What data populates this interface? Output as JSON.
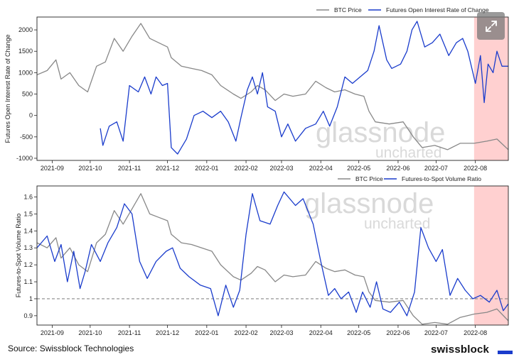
{
  "colors": {
    "btc_price": "#888888",
    "blue_series": "#1a3ccc",
    "highlight": "#ffc8c8",
    "reference_line": "#888888"
  },
  "watermark": {
    "line1": "glassnode",
    "line2": "uncharted"
  },
  "footer": {
    "source": "Source: Swissblock Technologies",
    "brand": "swissblock"
  },
  "expand_button": {
    "icon": "expand-arrows-icon"
  },
  "chart_data": [
    {
      "type": "line",
      "ylabel": "Futures Open Interest Rate of Change",
      "xlabel": "",
      "ylim": [
        -1050,
        2300
      ],
      "yticks": [
        -1000,
        -500,
        0,
        500,
        1000,
        1500,
        2000
      ],
      "x_range": [
        "2021-08-20",
        "2022-08-27"
      ],
      "xticks": [
        "2021-09",
        "2021-10",
        "2021-11",
        "2021-12",
        "2022-01",
        "2022-02",
        "2022-03",
        "2022-04",
        "2022-05",
        "2022-06",
        "2022-07",
        "2022-08"
      ],
      "highlight_range": [
        "2022-07-31",
        "2022-08-27"
      ],
      "legend": {
        "position": "top-right",
        "items": [
          "BTC Price",
          "Futures Open Interest Rate of Change"
        ]
      },
      "series": [
        {
          "name": "BTC Price",
          "points": [
            [
              "2021-08-20",
              950
            ],
            [
              "2021-08-28",
              1050
            ],
            [
              "2021-09-04",
              1300
            ],
            [
              "2021-09-08",
              850
            ],
            [
              "2021-09-15",
              1000
            ],
            [
              "2021-09-22",
              700
            ],
            [
              "2021-09-29",
              550
            ],
            [
              "2021-10-06",
              1150
            ],
            [
              "2021-10-13",
              1250
            ],
            [
              "2021-10-20",
              1800
            ],
            [
              "2021-10-27",
              1500
            ],
            [
              "2021-11-03",
              1850
            ],
            [
              "2021-11-10",
              2150
            ],
            [
              "2021-11-17",
              1800
            ],
            [
              "2021-11-24",
              1700
            ],
            [
              "2021-12-01",
              1600
            ],
            [
              "2021-12-04",
              1350
            ],
            [
              "2021-12-12",
              1150
            ],
            [
              "2021-12-20",
              1100
            ],
            [
              "2021-12-28",
              1050
            ],
            [
              "2022-01-05",
              950
            ],
            [
              "2022-01-12",
              700
            ],
            [
              "2022-01-22",
              500
            ],
            [
              "2022-01-28",
              400
            ],
            [
              "2022-02-05",
              550
            ],
            [
              "2022-02-10",
              700
            ],
            [
              "2022-02-16",
              600
            ],
            [
              "2022-02-24",
              350
            ],
            [
              "2022-03-03",
              500
            ],
            [
              "2022-03-10",
              450
            ],
            [
              "2022-03-20",
              500
            ],
            [
              "2022-03-28",
              800
            ],
            [
              "2022-04-05",
              650
            ],
            [
              "2022-04-12",
              550
            ],
            [
              "2022-04-20",
              600
            ],
            [
              "2022-04-28",
              500
            ],
            [
              "2022-05-05",
              450
            ],
            [
              "2022-05-09",
              100
            ],
            [
              "2022-05-14",
              -150
            ],
            [
              "2022-05-25",
              -200
            ],
            [
              "2022-06-05",
              -150
            ],
            [
              "2022-06-13",
              -500
            ],
            [
              "2022-06-20",
              -750
            ],
            [
              "2022-06-30",
              -700
            ],
            [
              "2022-07-10",
              -800
            ],
            [
              "2022-07-20",
              -650
            ],
            [
              "2022-07-31",
              -650
            ],
            [
              "2022-08-10",
              -600
            ],
            [
              "2022-08-18",
              -550
            ],
            [
              "2022-08-27",
              -800
            ]
          ]
        },
        {
          "name": "Futures Open Interest Rate of Change",
          "points": [
            [
              "2021-10-09",
              -300
            ],
            [
              "2021-10-11",
              -700
            ],
            [
              "2021-10-16",
              -250
            ],
            [
              "2021-10-22",
              -150
            ],
            [
              "2021-10-27",
              -600
            ],
            [
              "2021-11-01",
              700
            ],
            [
              "2021-11-08",
              550
            ],
            [
              "2021-11-13",
              900
            ],
            [
              "2021-11-18",
              500
            ],
            [
              "2021-11-22",
              900
            ],
            [
              "2021-11-27",
              700
            ],
            [
              "2021-12-01",
              750
            ],
            [
              "2021-12-04",
              -750
            ],
            [
              "2021-12-09",
              -900
            ],
            [
              "2021-12-16",
              -550
            ],
            [
              "2021-12-22",
              0
            ],
            [
              "2021-12-29",
              100
            ],
            [
              "2022-01-05",
              -50
            ],
            [
              "2022-01-12",
              100
            ],
            [
              "2022-01-18",
              -150
            ],
            [
              "2022-01-24",
              -600
            ],
            [
              "2022-01-28",
              -50
            ],
            [
              "2022-02-02",
              600
            ],
            [
              "2022-02-06",
              900
            ],
            [
              "2022-02-10",
              500
            ],
            [
              "2022-02-14",
              1000
            ],
            [
              "2022-02-18",
              200
            ],
            [
              "2022-02-24",
              100
            ],
            [
              "2022-03-01",
              -500
            ],
            [
              "2022-03-06",
              -200
            ],
            [
              "2022-03-12",
              -600
            ],
            [
              "2022-03-20",
              -300
            ],
            [
              "2022-03-28",
              -200
            ],
            [
              "2022-04-03",
              100
            ],
            [
              "2022-04-08",
              -250
            ],
            [
              "2022-04-14",
              200
            ],
            [
              "2022-04-20",
              900
            ],
            [
              "2022-04-26",
              750
            ],
            [
              "2022-05-02",
              900
            ],
            [
              "2022-05-08",
              1050
            ],
            [
              "2022-05-13",
              1500
            ],
            [
              "2022-05-17",
              2100
            ],
            [
              "2022-05-23",
              1300
            ],
            [
              "2022-05-27",
              1100
            ],
            [
              "2022-06-03",
              1200
            ],
            [
              "2022-06-08",
              1500
            ],
            [
              "2022-06-12",
              2000
            ],
            [
              "2022-06-16",
              2200
            ],
            [
              "2022-06-22",
              1600
            ],
            [
              "2022-06-28",
              1700
            ],
            [
              "2022-07-04",
              1900
            ],
            [
              "2022-07-11",
              1400
            ],
            [
              "2022-07-17",
              1700
            ],
            [
              "2022-07-22",
              1800
            ],
            [
              "2022-07-26",
              1500
            ],
            [
              "2022-08-01",
              750
            ],
            [
              "2022-08-05",
              1400
            ],
            [
              "2022-08-08",
              300
            ],
            [
              "2022-08-11",
              1200
            ],
            [
              "2022-08-15",
              1000
            ],
            [
              "2022-08-18",
              1500
            ],
            [
              "2022-08-22",
              1150
            ],
            [
              "2022-08-27",
              1150
            ]
          ]
        }
      ]
    },
    {
      "type": "line",
      "ylabel": "Futures-to-Spot Volume Ratio",
      "xlabel": "",
      "ylim": [
        0.845,
        1.665
      ],
      "yticks": [
        0.9,
        1.0,
        1.1,
        1.2,
        1.3,
        1.4,
        1.5,
        1.6
      ],
      "x_range": [
        "2021-08-20",
        "2022-08-27"
      ],
      "xticks": [
        "2021-09",
        "2021-10",
        "2021-11",
        "2021-12",
        "2022-01",
        "2022-02",
        "2022-03",
        "2022-04",
        "2022-05",
        "2022-06",
        "2022-07",
        "2022-08"
      ],
      "highlight_range": [
        "2022-07-31",
        "2022-08-27"
      ],
      "reference_line": 1.0,
      "legend": {
        "position": "top-right",
        "items": [
          "BTC Price",
          "Futures-to-Spot Volume Ratio"
        ]
      },
      "series": [
        {
          "name": "BTC Price",
          "points": [
            [
              "2021-08-20",
              1.33
            ],
            [
              "2021-08-28",
              1.3
            ],
            [
              "2021-09-04",
              1.36
            ],
            [
              "2021-09-08",
              1.24
            ],
            [
              "2021-09-15",
              1.3
            ],
            [
              "2021-09-22",
              1.2
            ],
            [
              "2021-09-29",
              1.16
            ],
            [
              "2021-10-06",
              1.33
            ],
            [
              "2021-10-13",
              1.38
            ],
            [
              "2021-10-20",
              1.52
            ],
            [
              "2021-10-27",
              1.44
            ],
            [
              "2021-11-03",
              1.53
            ],
            [
              "2021-11-10",
              1.62
            ],
            [
              "2021-11-17",
              1.5
            ],
            [
              "2021-11-24",
              1.48
            ],
            [
              "2021-12-01",
              1.46
            ],
            [
              "2021-12-04",
              1.38
            ],
            [
              "2021-12-12",
              1.33
            ],
            [
              "2021-12-20",
              1.32
            ],
            [
              "2021-12-28",
              1.3
            ],
            [
              "2022-01-05",
              1.28
            ],
            [
              "2022-01-12",
              1.2
            ],
            [
              "2022-01-22",
              1.13
            ],
            [
              "2022-01-28",
              1.11
            ],
            [
              "2022-02-05",
              1.15
            ],
            [
              "2022-02-10",
              1.19
            ],
            [
              "2022-02-16",
              1.17
            ],
            [
              "2022-02-24",
              1.1
            ],
            [
              "2022-03-03",
              1.14
            ],
            [
              "2022-03-10",
              1.13
            ],
            [
              "2022-03-20",
              1.14
            ],
            [
              "2022-03-28",
              1.22
            ],
            [
              "2022-04-05",
              1.18
            ],
            [
              "2022-04-12",
              1.16
            ],
            [
              "2022-04-20",
              1.17
            ],
            [
              "2022-04-28",
              1.14
            ],
            [
              "2022-05-05",
              1.13
            ],
            [
              "2022-05-09",
              1.04
            ],
            [
              "2022-05-14",
              0.99
            ],
            [
              "2022-05-25",
              0.98
            ],
            [
              "2022-06-05",
              0.99
            ],
            [
              "2022-06-13",
              0.9
            ],
            [
              "2022-06-20",
              0.85
            ],
            [
              "2022-06-30",
              0.86
            ],
            [
              "2022-07-10",
              0.85
            ],
            [
              "2022-07-20",
              0.89
            ],
            [
              "2022-07-31",
              0.91
            ],
            [
              "2022-08-10",
              0.92
            ],
            [
              "2022-08-18",
              0.94
            ],
            [
              "2022-08-27",
              0.87
            ]
          ]
        },
        {
          "name": "Futures-to-Spot Volume Ratio",
          "points": [
            [
              "2021-08-20",
              1.3
            ],
            [
              "2021-08-28",
              1.37
            ],
            [
              "2021-09-03",
              1.22
            ],
            [
              "2021-09-08",
              1.32
            ],
            [
              "2021-09-13",
              1.1
            ],
            [
              "2021-09-18",
              1.28
            ],
            [
              "2021-09-23",
              1.06
            ],
            [
              "2021-09-27",
              1.16
            ],
            [
              "2021-10-02",
              1.32
            ],
            [
              "2021-10-09",
              1.22
            ],
            [
              "2021-10-15",
              1.33
            ],
            [
              "2021-10-22",
              1.42
            ],
            [
              "2021-10-28",
              1.56
            ],
            [
              "2021-11-03",
              1.5
            ],
            [
              "2021-11-09",
              1.22
            ],
            [
              "2021-11-15",
              1.12
            ],
            [
              "2021-11-22",
              1.22
            ],
            [
              "2021-11-30",
              1.28
            ],
            [
              "2021-12-05",
              1.3
            ],
            [
              "2021-12-11",
              1.18
            ],
            [
              "2021-12-18",
              1.13
            ],
            [
              "2021-12-27",
              1.08
            ],
            [
              "2022-01-04",
              1.06
            ],
            [
              "2022-01-10",
              0.9
            ],
            [
              "2022-01-16",
              1.08
            ],
            [
              "2022-01-22",
              0.95
            ],
            [
              "2022-01-27",
              1.05
            ],
            [
              "2022-02-01",
              1.38
            ],
            [
              "2022-02-06",
              1.62
            ],
            [
              "2022-02-12",
              1.46
            ],
            [
              "2022-02-20",
              1.44
            ],
            [
              "2022-02-26",
              1.55
            ],
            [
              "2022-03-03",
              1.63
            ],
            [
              "2022-03-12",
              1.55
            ],
            [
              "2022-03-18",
              1.59
            ],
            [
              "2022-03-26",
              1.44
            ],
            [
              "2022-04-01",
              1.22
            ],
            [
              "2022-04-07",
              1.02
            ],
            [
              "2022-04-12",
              1.06
            ],
            [
              "2022-04-17",
              1.0
            ],
            [
              "2022-04-23",
              1.04
            ],
            [
              "2022-04-29",
              0.92
            ],
            [
              "2022-05-04",
              1.04
            ],
            [
              "2022-05-10",
              0.95
            ],
            [
              "2022-05-15",
              1.1
            ],
            [
              "2022-05-20",
              0.94
            ],
            [
              "2022-05-26",
              0.92
            ],
            [
              "2022-06-02",
              0.98
            ],
            [
              "2022-06-08",
              0.9
            ],
            [
              "2022-06-14",
              1.04
            ],
            [
              "2022-06-19",
              1.42
            ],
            [
              "2022-06-25",
              1.3
            ],
            [
              "2022-07-01",
              1.22
            ],
            [
              "2022-07-06",
              1.29
            ],
            [
              "2022-07-12",
              1.02
            ],
            [
              "2022-07-18",
              1.12
            ],
            [
              "2022-07-24",
              1.05
            ],
            [
              "2022-07-30",
              1.0
            ],
            [
              "2022-08-05",
              1.02
            ],
            [
              "2022-08-12",
              0.98
            ],
            [
              "2022-08-18",
              1.05
            ],
            [
              "2022-08-23",
              0.93
            ],
            [
              "2022-08-27",
              0.97
            ]
          ]
        }
      ]
    }
  ]
}
